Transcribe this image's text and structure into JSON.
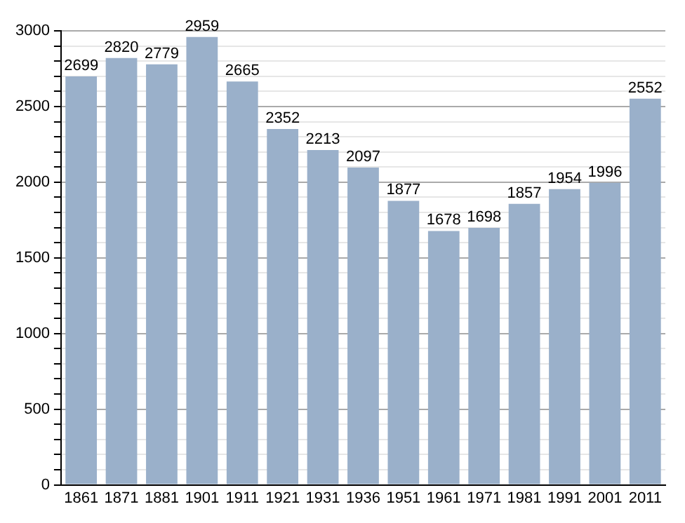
{
  "chart_data": {
    "type": "bar",
    "categories": [
      "1861",
      "1871",
      "1881",
      "1901",
      "1911",
      "1921",
      "1931",
      "1936",
      "1951",
      "1961",
      "1971",
      "1981",
      "1991",
      "2001",
      "2011"
    ],
    "values": [
      2699,
      2820,
      2779,
      2959,
      2665,
      2352,
      2213,
      2097,
      1877,
      1678,
      1698,
      1857,
      1954,
      1996,
      2552
    ],
    "color": "#9ab0ca",
    "ylim": [
      0,
      3000
    ],
    "yticks": [
      0,
      {
        "value": 100,
        "label": null
      },
      {
        "value": 200,
        "label": null
      },
      {
        "value": 300,
        "label": null
      },
      {
        "value": 400,
        "label": null
      },
      500,
      {
        "value": 600,
        "label": null
      },
      {
        "value": 700,
        "label": null
      },
      {
        "value": 800,
        "label": null
      },
      {
        "value": 900,
        "label": null
      },
      1000,
      {
        "value": 1100,
        "label": null
      },
      {
        "value": 1200,
        "label": null
      },
      {
        "value": 1300,
        "label": null
      },
      {
        "value": 1400,
        "label": null
      },
      1500,
      {
        "value": 1600,
        "label": null
      },
      {
        "value": 1700,
        "label": null
      },
      {
        "value": 1800,
        "label": null
      },
      {
        "value": 1900,
        "label": null
      },
      2000,
      {
        "value": 2100,
        "label": null
      },
      {
        "value": 2200,
        "label": null
      },
      {
        "value": 2300,
        "label": null
      },
      {
        "value": 2400,
        "label": null
      },
      2500,
      {
        "value": 2600,
        "label": null
      },
      {
        "value": 2700,
        "label": null
      },
      {
        "value": 2800,
        "label": null
      },
      {
        "value": 2900,
        "label": null
      },
      3000
    ],
    "grid": "y",
    "data_labels": true
  }
}
